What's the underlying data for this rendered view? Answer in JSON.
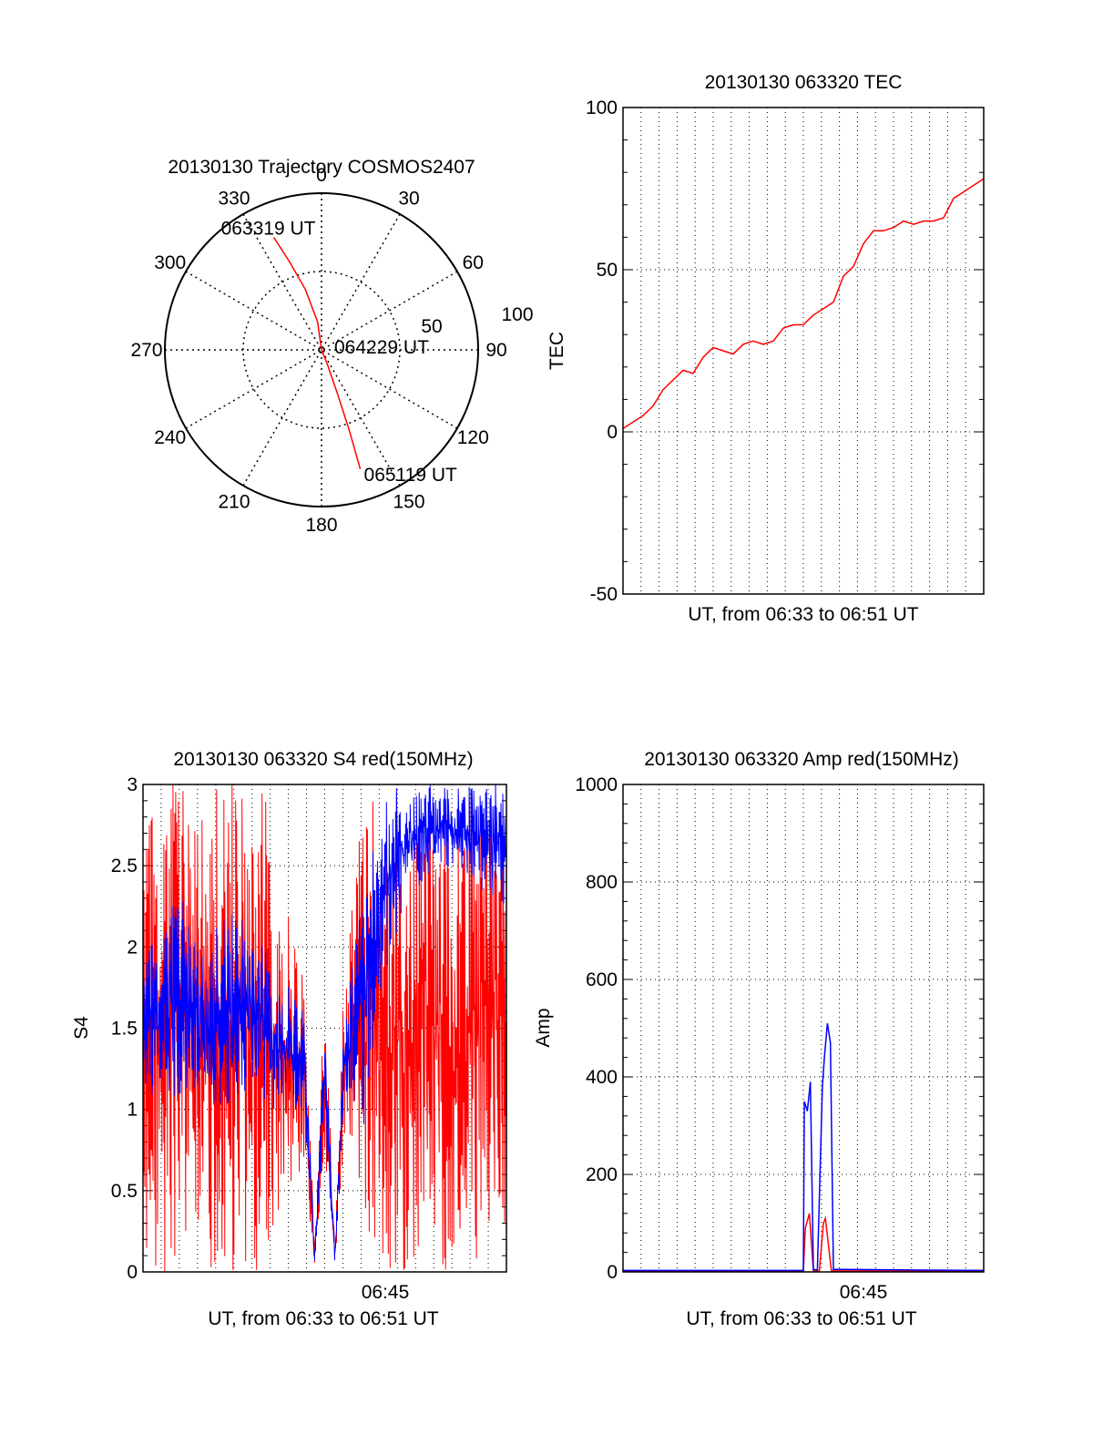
{
  "colors": {
    "red": "#ff0000",
    "blue": "#0000ff",
    "axis": "#000000",
    "grid": "#000000"
  },
  "chart_data": [
    {
      "type": "polar",
      "title": "20130130 Trajectory COSMOS2407",
      "angle_ticks": [
        "0",
        "30",
        "60",
        "90",
        "120",
        "150",
        "180",
        "210",
        "240",
        "270",
        "300",
        "330"
      ],
      "radial_ticks": [
        "50",
        "100"
      ],
      "radial_range": [
        0,
        100
      ],
      "grid": true,
      "series": [
        {
          "color": "#ff0000",
          "points": [
            {
              "azimuth": 337,
              "radius": 78
            },
            {
              "azimuth": 340,
              "radius": 60
            },
            {
              "azimuth": 345,
              "radius": 40
            },
            {
              "azimuth": 352,
              "radius": 18
            },
            {
              "azimuth": 0,
              "radius": 0
            },
            {
              "azimuth": 158,
              "radius": 10
            },
            {
              "azimuth": 160,
              "radius": 30
            },
            {
              "azimuth": 161,
              "radius": 55
            },
            {
              "azimuth": 162,
              "radius": 80
            }
          ]
        }
      ],
      "annotations": [
        {
          "text": "063319 UT",
          "azimuth": 337,
          "radius": 78
        },
        {
          "text": "064229 UT",
          "azimuth": 0,
          "radius": 0
        },
        {
          "text": "065119 UT",
          "azimuth": 162,
          "radius": 80
        }
      ]
    },
    {
      "type": "line",
      "title": "20130130 063320 TEC",
      "xlabel": "UT, from 06:33 to 06:51 UT",
      "ylabel": "TEC",
      "ylim": [
        -50,
        100
      ],
      "yticks": [
        "100",
        "50",
        "0",
        "-50"
      ],
      "xlim": [
        0,
        18
      ],
      "grid": true,
      "series": [
        {
          "color": "#ff0000",
          "x": [
            0,
            0.5,
            1,
            1.5,
            2,
            2.5,
            3,
            3.5,
            4,
            4.5,
            5,
            5.5,
            6,
            6.5,
            7,
            7.5,
            8,
            8.5,
            9,
            9.5,
            10,
            10.5,
            11,
            11.5,
            12,
            12.5,
            13,
            13.5,
            14,
            14.5,
            15,
            15.5,
            16,
            16.5,
            17,
            17.5,
            18
          ],
          "y": [
            1,
            3,
            5,
            8,
            13,
            16,
            19,
            18,
            23,
            26,
            25,
            24,
            27,
            28,
            27,
            28,
            32,
            33,
            33,
            36,
            38,
            40,
            48,
            51,
            58,
            62,
            62,
            63,
            65,
            64,
            65,
            65,
            66,
            72,
            74,
            76,
            78
          ]
        }
      ]
    },
    {
      "type": "line",
      "title": "20130130 063320 S4 red(150MHz)",
      "xlabel": "UT, from 06:33 to 06:51 UT",
      "ylabel": "S4",
      "ylim": [
        0,
        3
      ],
      "yticks": [
        "3",
        "2.5",
        "2",
        "1.5",
        "1",
        "0.5",
        "0"
      ],
      "xlim": [
        0,
        18
      ],
      "xticks": [
        {
          "value": 12,
          "label": "06:45"
        }
      ],
      "grid": true,
      "series": [
        {
          "color": "#ff0000",
          "x": [
            0,
            1,
            2,
            3,
            4,
            5,
            6,
            7,
            8,
            8.5,
            9,
            9.5,
            10,
            11,
            12,
            13,
            14,
            15,
            16,
            17,
            18
          ],
          "y": [
            1.3,
            1.4,
            1.5,
            1.3,
            1.4,
            1.5,
            1.3,
            1.2,
            1.1,
            0.1,
            1.1,
            0.1,
            1.2,
            1.0,
            2.0,
            2.5,
            2.6,
            2.7,
            2.6,
            2.5,
            2.3
          ],
          "y_low": [
            0,
            0,
            0,
            0,
            0,
            0,
            0,
            0.5,
            0.6,
            0.05,
            0.7,
            0.05,
            0.8,
            0.2,
            0,
            0,
            0,
            0,
            0,
            0,
            0
          ],
          "y_high": [
            3,
            3,
            3,
            3,
            3,
            3,
            3,
            2.3,
            1.8,
            0.2,
            1.8,
            0.2,
            2.0,
            3,
            3,
            3,
            3,
            3,
            3,
            3,
            3
          ]
        },
        {
          "color": "#0000ff",
          "x": [
            0,
            1,
            2,
            3,
            4,
            5,
            6,
            7,
            8,
            8.5,
            9,
            9.5,
            10,
            11,
            12,
            13,
            14,
            15,
            16,
            17,
            18
          ],
          "y": [
            1.4,
            1.5,
            1.6,
            1.4,
            1.5,
            1.6,
            1.4,
            1.3,
            1.2,
            0.08,
            1.2,
            0.08,
            1.3,
            1.5,
            2.3,
            2.7,
            2.8,
            2.9,
            2.8,
            2.7,
            2.6
          ],
          "y_low": [
            1.0,
            1.0,
            1.1,
            1.0,
            1.0,
            1.1,
            1.0,
            1.0,
            0.9,
            0.05,
            0.9,
            0.05,
            1.0,
            0.9,
            1.8,
            2.3,
            2.4,
            2.5,
            2.4,
            2.3,
            2.2
          ],
          "y_high": [
            2.0,
            2.2,
            2.3,
            2.0,
            2.2,
            2.2,
            2.0,
            1.8,
            1.6,
            0.15,
            1.6,
            0.15,
            1.7,
            2.4,
            3,
            3,
            3,
            3,
            3,
            3,
            3
          ]
        }
      ]
    },
    {
      "type": "line",
      "title": "20130130 063320 Amp red(150MHz)",
      "xlabel": "UT, from 06:33 to 06:51 UT",
      "ylabel": "Amp",
      "ylim": [
        0,
        1000
      ],
      "yticks": [
        "1000",
        "800",
        "600",
        "400",
        "200",
        "0"
      ],
      "xlim": [
        0,
        18
      ],
      "xticks": [
        {
          "value": 12,
          "label": "06:45"
        }
      ],
      "grid": true,
      "series": [
        {
          "color": "#ff0000",
          "x": [
            0,
            9.0,
            9.1,
            9.3,
            9.5,
            9.8,
            10.0,
            10.1,
            10.4,
            10.6,
            11,
            18
          ],
          "y": [
            2,
            2,
            90,
            120,
            2,
            2,
            100,
            110,
            2,
            2,
            2,
            2
          ]
        },
        {
          "color": "#0000ff",
          "x": [
            0,
            9.0,
            9.05,
            9.2,
            9.35,
            9.5,
            9.7,
            9.95,
            10.05,
            10.2,
            10.35,
            10.5,
            11,
            18
          ],
          "y": [
            3,
            3,
            350,
            330,
            390,
            5,
            4,
            380,
            440,
            510,
            470,
            5,
            5,
            3
          ]
        }
      ]
    }
  ]
}
